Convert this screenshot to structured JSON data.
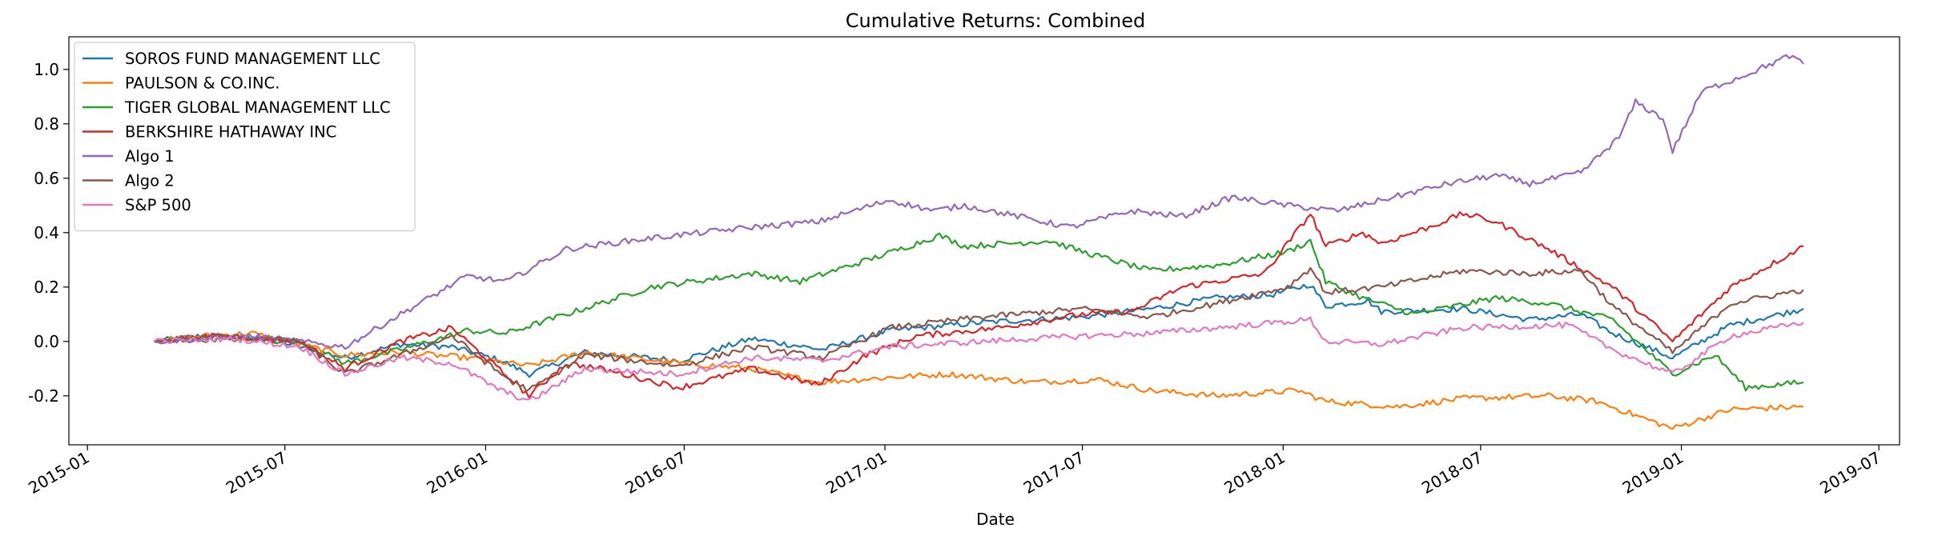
{
  "chart_data": {
    "type": "line",
    "title": "Cumulative Returns: Combined",
    "xlabel": "Date",
    "ylabel": "",
    "xlim": [
      "2014-12-15",
      "2019-07-20"
    ],
    "ylim": [
      -0.38,
      1.12
    ],
    "x_ticks": [
      "2015-01",
      "2015-07",
      "2016-01",
      "2016-07",
      "2017-01",
      "2017-07",
      "2018-01",
      "2018-07",
      "2019-01",
      "2019-07"
    ],
    "y_ticks": [
      -0.2,
      0.0,
      0.2,
      0.4,
      0.6,
      0.8,
      1.0
    ],
    "grid": false,
    "legend_position": "upper-left",
    "series": [
      {
        "name": "SOROS FUND MANAGEMENT LLC",
        "color": "#1f77b4",
        "points": [
          [
            "2015-03-03",
            0.0
          ],
          [
            "2015-04-15",
            0.02
          ],
          [
            "2015-06-15",
            0.01
          ],
          [
            "2015-08-25",
            -0.06
          ],
          [
            "2015-10-15",
            -0.01
          ],
          [
            "2015-12-01",
            -0.02
          ],
          [
            "2016-01-15",
            -0.07
          ],
          [
            "2016-02-10",
            -0.12
          ],
          [
            "2016-04-01",
            -0.04
          ],
          [
            "2016-06-27",
            -0.07
          ],
          [
            "2016-09-01",
            0.01
          ],
          [
            "2016-11-05",
            -0.03
          ],
          [
            "2017-01-05",
            0.04
          ],
          [
            "2017-04-01",
            0.07
          ],
          [
            "2017-07-01",
            0.09
          ],
          [
            "2017-09-01",
            0.12
          ],
          [
            "2017-11-01",
            0.16
          ],
          [
            "2017-12-20",
            0.17
          ],
          [
            "2018-01-26",
            0.21
          ],
          [
            "2018-02-09",
            0.13
          ],
          [
            "2018-03-20",
            0.15
          ],
          [
            "2018-04-01",
            0.11
          ],
          [
            "2018-06-15",
            0.12
          ],
          [
            "2018-08-15",
            0.08
          ],
          [
            "2018-10-01",
            0.1
          ],
          [
            "2018-10-30",
            0.03
          ],
          [
            "2018-12-24",
            -0.06
          ],
          [
            "2019-02-15",
            0.06
          ],
          [
            "2019-04-23",
            0.12
          ]
        ]
      },
      {
        "name": "PAULSON & CO.INC.",
        "color": "#ff7f0e",
        "points": [
          [
            "2015-03-03",
            0.0
          ],
          [
            "2015-04-15",
            0.02
          ],
          [
            "2015-06-01",
            0.03
          ],
          [
            "2015-08-25",
            -0.05
          ],
          [
            "2015-10-15",
            -0.04
          ],
          [
            "2015-12-15",
            -0.06
          ],
          [
            "2016-02-10",
            -0.09
          ],
          [
            "2016-04-01",
            -0.04
          ],
          [
            "2016-06-27",
            -0.08
          ],
          [
            "2016-09-01",
            -0.1
          ],
          [
            "2016-11-01",
            -0.15
          ],
          [
            "2017-01-15",
            -0.13
          ],
          [
            "2017-03-01",
            -0.12
          ],
          [
            "2017-05-15",
            -0.15
          ],
          [
            "2017-07-15",
            -0.14
          ],
          [
            "2017-09-01",
            -0.18
          ],
          [
            "2017-11-01",
            -0.2
          ],
          [
            "2018-01-15",
            -0.18
          ],
          [
            "2018-02-09",
            -0.22
          ],
          [
            "2018-04-15",
            -0.24
          ],
          [
            "2018-06-15",
            -0.21
          ],
          [
            "2018-09-01",
            -0.2
          ],
          [
            "2018-10-15",
            -0.22
          ],
          [
            "2018-12-24",
            -0.32
          ],
          [
            "2019-02-15",
            -0.25
          ],
          [
            "2019-04-23",
            -0.24
          ]
        ]
      },
      {
        "name": "TIGER GLOBAL MANAGEMENT LLC",
        "color": "#2ca02c",
        "points": [
          [
            "2015-03-03",
            0.0
          ],
          [
            "2015-05-01",
            0.01
          ],
          [
            "2015-07-15",
            0.0
          ],
          [
            "2015-08-25",
            -0.08
          ],
          [
            "2015-10-15",
            -0.03
          ],
          [
            "2015-12-15",
            0.04
          ],
          [
            "2016-01-20",
            0.03
          ],
          [
            "2016-03-15",
            0.1
          ],
          [
            "2016-06-01",
            0.2
          ],
          [
            "2016-09-01",
            0.25
          ],
          [
            "2016-10-15",
            0.22
          ],
          [
            "2017-01-01",
            0.32
          ],
          [
            "2017-02-20",
            0.39
          ],
          [
            "2017-03-15",
            0.35
          ],
          [
            "2017-06-01",
            0.37
          ],
          [
            "2017-07-01",
            0.33
          ],
          [
            "2017-09-01",
            0.26
          ],
          [
            "2017-11-01",
            0.28
          ],
          [
            "2018-01-05",
            0.33
          ],
          [
            "2018-01-26",
            0.37
          ],
          [
            "2018-02-09",
            0.22
          ],
          [
            "2018-03-15",
            0.16
          ],
          [
            "2018-05-01",
            0.1
          ],
          [
            "2018-07-15",
            0.16
          ],
          [
            "2018-09-01",
            0.14
          ],
          [
            "2018-10-30",
            0.08
          ],
          [
            "2018-12-24",
            -0.12
          ],
          [
            "2019-02-01",
            -0.05
          ],
          [
            "2019-03-01",
            -0.17
          ],
          [
            "2019-04-23",
            -0.15
          ]
        ]
      },
      {
        "name": "BERKSHIRE HATHAWAY INC",
        "color": "#d62728",
        "points": [
          [
            "2015-03-03",
            0.0
          ],
          [
            "2015-05-01",
            0.02
          ],
          [
            "2015-07-15",
            0.0
          ],
          [
            "2015-08-25",
            -0.1
          ],
          [
            "2015-10-15",
            0.0
          ],
          [
            "2015-12-01",
            0.05
          ],
          [
            "2015-12-15",
            0.0
          ],
          [
            "2016-02-10",
            -0.2
          ],
          [
            "2016-03-15",
            -0.08
          ],
          [
            "2016-04-15",
            -0.1
          ],
          [
            "2016-06-27",
            -0.17
          ],
          [
            "2016-09-01",
            -0.1
          ],
          [
            "2016-11-01",
            -0.16
          ],
          [
            "2016-12-15",
            -0.05
          ],
          [
            "2017-01-30",
            0.02
          ],
          [
            "2017-04-15",
            0.05
          ],
          [
            "2017-07-01",
            0.1
          ],
          [
            "2017-08-15",
            0.11
          ],
          [
            "2017-10-01",
            0.2
          ],
          [
            "2017-12-15",
            0.25
          ],
          [
            "2018-01-26",
            0.47
          ],
          [
            "2018-02-09",
            0.35
          ],
          [
            "2018-03-15",
            0.4
          ],
          [
            "2018-04-01",
            0.36
          ],
          [
            "2018-05-15",
            0.42
          ],
          [
            "2018-06-15",
            0.47
          ],
          [
            "2018-07-15",
            0.44
          ],
          [
            "2018-09-01",
            0.34
          ],
          [
            "2018-10-30",
            0.2
          ],
          [
            "2018-12-24",
            0.0
          ],
          [
            "2019-02-15",
            0.2
          ],
          [
            "2019-04-23",
            0.35
          ]
        ]
      },
      {
        "name": "Algo 1",
        "color": "#9467bd",
        "points": [
          [
            "2015-03-03",
            0.0
          ],
          [
            "2015-06-01",
            0.02
          ],
          [
            "2015-08-25",
            -0.02
          ],
          [
            "2015-10-15",
            0.1
          ],
          [
            "2015-12-15",
            0.24
          ],
          [
            "2016-01-20",
            0.22
          ],
          [
            "2016-03-15",
            0.34
          ],
          [
            "2016-06-01",
            0.38
          ],
          [
            "2016-09-01",
            0.42
          ],
          [
            "2016-11-01",
            0.44
          ],
          [
            "2017-01-05",
            0.52
          ],
          [
            "2017-02-15",
            0.48
          ],
          [
            "2017-03-15",
            0.5
          ],
          [
            "2017-06-20",
            0.42
          ],
          [
            "2017-08-15",
            0.48
          ],
          [
            "2017-10-01",
            0.46
          ],
          [
            "2017-11-15",
            0.53
          ],
          [
            "2018-01-05",
            0.5
          ],
          [
            "2018-02-20",
            0.48
          ],
          [
            "2018-04-01",
            0.52
          ],
          [
            "2018-06-01",
            0.58
          ],
          [
            "2018-07-15",
            0.61
          ],
          [
            "2018-08-15",
            0.58
          ],
          [
            "2018-10-01",
            0.62
          ],
          [
            "2018-11-05",
            0.75
          ],
          [
            "2018-11-20",
            0.88
          ],
          [
            "2018-12-15",
            0.82
          ],
          [
            "2018-12-24",
            0.7
          ],
          [
            "2019-01-20",
            0.92
          ],
          [
            "2019-03-01",
            0.98
          ],
          [
            "2019-04-10",
            1.05
          ],
          [
            "2019-04-23",
            1.02
          ]
        ]
      },
      {
        "name": "Algo 2",
        "color": "#8c564b",
        "points": [
          [
            "2015-03-03",
            0.0
          ],
          [
            "2015-05-01",
            0.02
          ],
          [
            "2015-07-15",
            0.0
          ],
          [
            "2015-08-25",
            -0.12
          ],
          [
            "2015-10-15",
            -0.05
          ],
          [
            "2015-12-01",
            0.02
          ],
          [
            "2016-01-15",
            -0.12
          ],
          [
            "2016-02-10",
            -0.18
          ],
          [
            "2016-04-01",
            -0.05
          ],
          [
            "2016-06-27",
            -0.09
          ],
          [
            "2016-09-01",
            -0.02
          ],
          [
            "2016-11-05",
            -0.06
          ],
          [
            "2017-01-05",
            0.05
          ],
          [
            "2017-04-01",
            0.09
          ],
          [
            "2017-07-01",
            0.12
          ],
          [
            "2017-09-01",
            0.09
          ],
          [
            "2017-11-01",
            0.14
          ],
          [
            "2018-01-05",
            0.2
          ],
          [
            "2018-01-26",
            0.27
          ],
          [
            "2018-02-09",
            0.18
          ],
          [
            "2018-04-01",
            0.2
          ],
          [
            "2018-06-15",
            0.26
          ],
          [
            "2018-08-15",
            0.25
          ],
          [
            "2018-10-01",
            0.26
          ],
          [
            "2018-10-30",
            0.13
          ],
          [
            "2018-12-24",
            -0.04
          ],
          [
            "2019-02-15",
            0.14
          ],
          [
            "2019-04-23",
            0.19
          ]
        ]
      },
      {
        "name": "S&P 500",
        "color": "#e377c2",
        "points": [
          [
            "2015-03-03",
            0.0
          ],
          [
            "2015-05-15",
            0.01
          ],
          [
            "2015-07-15",
            -0.02
          ],
          [
            "2015-08-25",
            -0.12
          ],
          [
            "2015-10-15",
            -0.06
          ],
          [
            "2015-12-01",
            -0.08
          ],
          [
            "2016-01-15",
            -0.18
          ],
          [
            "2016-02-10",
            -0.22
          ],
          [
            "2016-04-01",
            -0.1
          ],
          [
            "2016-06-27",
            -0.12
          ],
          [
            "2016-09-01",
            -0.06
          ],
          [
            "2016-11-05",
            -0.07
          ],
          [
            "2017-01-05",
            -0.02
          ],
          [
            "2017-04-01",
            0.0
          ],
          [
            "2017-07-01",
            0.02
          ],
          [
            "2017-09-01",
            0.03
          ],
          [
            "2017-11-01",
            0.05
          ],
          [
            "2018-01-26",
            0.08
          ],
          [
            "2018-02-09",
            0.0
          ],
          [
            "2018-04-01",
            -0.01
          ],
          [
            "2018-06-15",
            0.05
          ],
          [
            "2018-09-20",
            0.06
          ],
          [
            "2018-10-30",
            -0.03
          ],
          [
            "2018-12-24",
            -0.12
          ],
          [
            "2019-02-15",
            0.02
          ],
          [
            "2019-04-23",
            0.07
          ]
        ]
      }
    ]
  }
}
